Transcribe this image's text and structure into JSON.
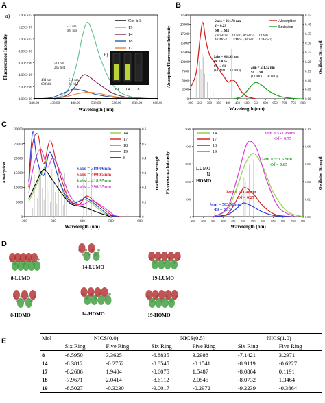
{
  "panels": {
    "A": "A",
    "B": "B",
    "C": "C",
    "D": "D",
    "E": "E"
  },
  "panelA": {
    "sub_a": "a)",
    "sub_b": "b)",
    "ylabel": "Fluorescence Intensity",
    "xlabel": "Wavelength (nm)",
    "yticks": [
      "0.00E+00",
      "2.00E+06",
      "4.00E+06",
      "6.00E+06",
      "8.00E+06",
      "1.00E+07",
      "1.20E+07",
      "1.40E+07"
    ],
    "xticks": [
      "388.00",
      "438.00",
      "488.00",
      "538.00",
      "588.00",
      "638.00",
      "688.00"
    ],
    "legend": [
      "Ctr. blk",
      "19",
      "14",
      "18",
      "17"
    ],
    "colors": [
      "#000000",
      "#5cc08a",
      "#7b2a4e",
      "#2a5fa8",
      "#e8813a"
    ],
    "ann": [
      {
        "nm": "517 nm",
        "fold": "685 fold"
      },
      {
        "nm": "510 nm",
        "fold": "245 fold"
      },
      {
        "nm": "484 nm",
        "fold": "60 fold"
      },
      {
        "nm": "518 nm",
        "fold": "26 fold"
      }
    ],
    "vials": [
      "19",
      "14",
      "8"
    ]
  },
  "panelB": {
    "ylabel": "Absorption/Fluorescence Intensity",
    "ylabel2": "Oscillator Strength",
    "xlabel": "Wavelength (nm)",
    "yticks": [
      "0",
      "2500",
      "5000",
      "7500",
      "10000",
      "12500",
      "15000",
      "17500",
      "20000",
      "22500"
    ],
    "yticks2": [
      "0.00",
      "0.05",
      "0.10",
      "0.15",
      "0.20",
      "0.25",
      "0.30",
      "0.35",
      "0.40",
      "0.45"
    ],
    "xticks": [
      "200",
      "250",
      "300",
      "350",
      "400",
      "450",
      "500",
      "550",
      "600",
      "650",
      "700",
      "750",
      "800"
    ],
    "legend": [
      "Absorption",
      "Emission"
    ],
    "ann1": [
      "λabs = 264.78 nm",
      "f = 0.29",
      "S0 → S11",
      "(HOMO-6 → LUMO; HOMO-5 → LUMO",
      "HOMO-7 → LUMO+1; HOMO → LUMO+1)"
    ],
    "ann2": [
      "λabs = 418.95 nm",
      "Φf = 0.65",
      "S0 → S1",
      "(HOMO → LUMO)"
    ],
    "ann3": [
      "λem = 551.52 nm",
      "S1 → S0",
      "(LUMO → HOMO)"
    ]
  },
  "panelC": {
    "left": {
      "ylabel": "Absorption",
      "ylabel2": "Oscillator Strength",
      "xlabel": "Wavelength (nm)",
      "yticks": [
        "0",
        "5000",
        "10000",
        "15000",
        "20000",
        "25000",
        "30000"
      ],
      "yticks2": [
        "0",
        "0.1",
        "0.2",
        "0.3",
        "0.4",
        "0.5",
        "0.6"
      ],
      "xticks": [
        "200",
        "300",
        "400",
        "500",
        "600"
      ],
      "legend": [
        "14",
        "17",
        "18",
        "19",
        "8"
      ],
      "ann": [
        "λabs = 389.06nm",
        "λabs = 400.85nm",
        "λabs = 418.95nm",
        "λabs = 396.35nm"
      ]
    },
    "right": {
      "ylabel": "Fluorescence Intensity",
      "ylabel2": "Oscillator Strength",
      "xlabel": "Wavelength (nm)",
      "yticks": [
        "0",
        "1000",
        "2000",
        "3000",
        "4000",
        "5000"
      ],
      "yticks2": [
        "0.00",
        "0.02",
        "0.04",
        "0.06",
        "0.08",
        "0.10"
      ],
      "xticks": [
        "250",
        "300",
        "350",
        "400",
        "450",
        "500",
        "550",
        "600",
        "650",
        "700",
        "750",
        "800"
      ],
      "legend": [
        "14",
        "17",
        "18",
        "19"
      ],
      "ann": [
        "λem = 533.93nm",
        "Φf = 0.75",
        "λem = 551.52nm",
        "Φf = 0.65",
        "λem = 511.48nm",
        "Φf = 0.27",
        "λem = 503.52nm",
        "Φf = 0.13"
      ],
      "lumo": "LUMO",
      "homo": "HOMO"
    }
  },
  "panelD": {
    "labels": [
      "8-LUMO",
      "14-LUMO",
      "19-LUMO",
      "8-HOMO",
      "14-HOMO",
      "19-HOMO"
    ]
  },
  "table": {
    "mol": "Mol",
    "groups": [
      "NICS(0.0)",
      "NICS(0.5)",
      "NICS(1.0)"
    ],
    "sub": [
      "Six Ring",
      "Five Ring",
      "Six Ring",
      "Five Ring",
      "Six Ring",
      "Five Ring"
    ],
    "rows": [
      [
        "8",
        "-6.5950",
        "3.3625",
        "-6.8835",
        "3.2988",
        "-7.1421",
        "3.2971"
      ],
      [
        "14",
        "-8.3812",
        "-0.2752",
        "-8.8545",
        "-0.1541",
        "-8.9119",
        "-0.6227"
      ],
      [
        "17",
        "-8.2606",
        "1.9404",
        "-8.6075",
        "1.5487",
        "-8.0864",
        "0.1191"
      ],
      [
        "18",
        "-7.9671",
        "2.0414",
        "-8.6112",
        "2.0545",
        "-8.0732",
        "1.3464"
      ],
      [
        "19",
        "-8.5027",
        "-0.3230",
        "-9.0017",
        "-0.2972",
        "-9.2239",
        "-0.3864"
      ]
    ]
  },
  "chart_data": [
    {
      "type": "line",
      "title": "",
      "xlabel": "Wavelength (nm)",
      "ylabel": "Fluorescence Intensity",
      "xlim": [
        388,
        688
      ],
      "ylim": [
        0,
        14000000
      ],
      "series": [
        {
          "name": "19",
          "x": [
            388,
            440,
            470,
            490,
            505,
            517,
            530,
            550,
            580,
            620,
            688
          ],
          "values": [
            0,
            100000,
            1500000,
            5500000,
            10500000,
            12800000,
            11000000,
            6500000,
            2200000,
            400000,
            0
          ]
        },
        {
          "name": "14",
          "x": [
            388,
            440,
            470,
            490,
            500,
            510,
            525,
            550,
            580,
            620,
            688
          ],
          "values": [
            0,
            100000,
            700000,
            2300000,
            3400000,
            4000000,
            3500000,
            2200000,
            900000,
            200000,
            0
          ]
        },
        {
          "name": "18",
          "x": [
            388,
            430,
            460,
            484,
            510,
            540,
            580,
            620,
            688
          ],
          "values": [
            0,
            200000,
            1000000,
            1600000,
            1300000,
            700000,
            250000,
            60000,
            0
          ]
        },
        {
          "name": "17",
          "x": [
            388,
            450,
            490,
            518,
            545,
            580,
            620,
            688
          ],
          "values": [
            0,
            150000,
            800000,
            1100000,
            900000,
            400000,
            100000,
            0
          ]
        },
        {
          "name": "Ctr. blk",
          "x": [
            388,
            688
          ],
          "values": [
            50000,
            50000
          ]
        }
      ]
    },
    {
      "type": "line",
      "title": "",
      "xlabel": "Wavelength (nm)",
      "ylabel": "Absorption/Fluorescence Intensity",
      "xlim": [
        200,
        800
      ],
      "ylim": [
        0,
        22500
      ],
      "series": [
        {
          "name": "Absorption",
          "x": [
            200,
            230,
            250,
            265,
            280,
            300,
            330,
            370,
            400,
            419,
            440,
            470,
            500,
            550
          ],
          "values": [
            3000,
            7000,
            16000,
            20500,
            16000,
            12000,
            9500,
            6500,
            4500,
            5000,
            4500,
            2000,
            600,
            0
          ]
        },
        {
          "name": "Emission",
          "x": [
            430,
            470,
            500,
            530,
            551,
            580,
            620,
            680,
            760,
            800
          ],
          "values": [
            0,
            500,
            2000,
            3800,
            4400,
            3600,
            2000,
            600,
            50,
            0
          ]
        }
      ]
    },
    {
      "type": "line",
      "title": "",
      "xlabel": "Wavelength (nm)",
      "ylabel": "Absorption",
      "xlim": [
        200,
        600
      ],
      "ylim": [
        0,
        30000
      ],
      "series": [
        {
          "name": "14",
          "x": [
            185,
            210,
            240,
            265,
            290,
            320,
            360,
            389,
            420,
            470,
            520
          ],
          "values": [
            5000,
            10000,
            16000,
            22000,
            15000,
            7000,
            5000,
            6000,
            4500,
            1000,
            0
          ]
        },
        {
          "name": "17",
          "x": [
            185,
            200,
            220,
            240,
            265,
            290,
            330,
            370,
            401,
            440,
            490,
            530
          ],
          "values": [
            10000,
            25000,
            28000,
            18000,
            26000,
            18000,
            7000,
            4000,
            7000,
            4500,
            800,
            0
          ]
        },
        {
          "name": "18",
          "x": [
            185,
            205,
            230,
            255,
            275,
            300,
            340,
            380,
            419,
            460,
            510
          ],
          "values": [
            8000,
            18000,
            23000,
            17000,
            20000,
            16000,
            7000,
            4000,
            5500,
            3500,
            0
          ]
        },
        {
          "name": "19",
          "x": [
            185,
            200,
            215,
            240,
            265,
            300,
            340,
            380,
            396,
            430,
            480,
            520
          ],
          "values": [
            12000,
            29000,
            20000,
            14000,
            22000,
            12000,
            5000,
            5500,
            6500,
            4500,
            800,
            0
          ]
        },
        {
          "name": "8",
          "x": [
            185,
            210,
            240,
            270,
            300,
            340,
            380,
            400,
            440,
            490
          ],
          "values": [
            6000,
            11000,
            16000,
            13000,
            9000,
            4500,
            3500,
            3000,
            1500,
            0
          ]
        }
      ]
    },
    {
      "type": "line",
      "title": "",
      "xlabel": "Wavelength (nm)",
      "ylabel": "Fluorescence Intensity",
      "xlim": [
        250,
        800
      ],
      "ylim": [
        0,
        5000
      ],
      "series": [
        {
          "name": "14",
          "x": [
            350,
            420,
            470,
            510,
            552,
            600,
            650,
            720,
            800
          ],
          "values": [
            0,
            400,
            1700,
            3000,
            3600,
            2800,
            1400,
            300,
            0
          ]
        },
        {
          "name": "17",
          "x": [
            350,
            420,
            460,
            490,
            511,
            550,
            600,
            660,
            740
          ],
          "values": [
            0,
            150,
            800,
            1450,
            1650,
            1300,
            600,
            120,
            0
          ]
        },
        {
          "name": "18",
          "x": [
            350,
            420,
            460,
            490,
            504,
            540,
            600,
            660,
            740
          ],
          "values": [
            0,
            100,
            400,
            700,
            780,
            620,
            250,
            50,
            0
          ]
        },
        {
          "name": "19",
          "x": [
            350,
            420,
            470,
            510,
            534,
            570,
            620,
            680,
            760
          ],
          "values": [
            0,
            500,
            2200,
            3900,
            4300,
            3800,
            2000,
            500,
            0
          ]
        }
      ]
    }
  ]
}
